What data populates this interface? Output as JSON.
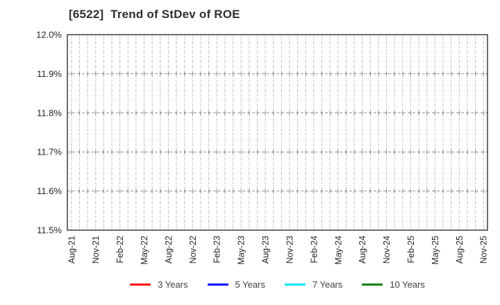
{
  "chart_data": {
    "type": "line",
    "title": "[6522]  Trend of StDev of ROE",
    "x_tick_labels": [
      "Aug-21",
      "Nov-21",
      "Feb-22",
      "May-22",
      "Aug-22",
      "Nov-22",
      "Feb-23",
      "May-23",
      "Aug-23",
      "Nov-23",
      "Feb-24",
      "May-24",
      "Aug-24",
      "Nov-24",
      "Feb-25",
      "May-25",
      "Aug-25",
      "Nov-25"
    ],
    "x_months_per_tick": 3,
    "xlabel": "",
    "ylabel": "",
    "ylim": [
      11.5,
      12.0
    ],
    "y_tick_step": 0.1,
    "y_tick_labels": [
      "11.5%",
      "11.6%",
      "11.7%",
      "11.8%",
      "11.9%",
      "12.0%"
    ],
    "grid": true,
    "legend_position": "bottom-center",
    "series": [
      {
        "name": "3 Years",
        "color": "#FF0000",
        "values": []
      },
      {
        "name": "5 Years",
        "color": "#0000FF",
        "values": []
      },
      {
        "name": "7 Years",
        "color": "#00E5EE",
        "values": []
      },
      {
        "name": "10 Years",
        "color": "#008000",
        "values": []
      }
    ]
  },
  "colors": {
    "background": "#FFFFFF",
    "axis_border": "#1f1f1f",
    "grid_vertical": "#A3A3A3",
    "grid_horizontal": "#8F8F8F",
    "grid_cross_tick": "#787878",
    "tick_text": "#262626",
    "title_text": "#2F2F2F",
    "legend_text": "#3C3C3C"
  }
}
